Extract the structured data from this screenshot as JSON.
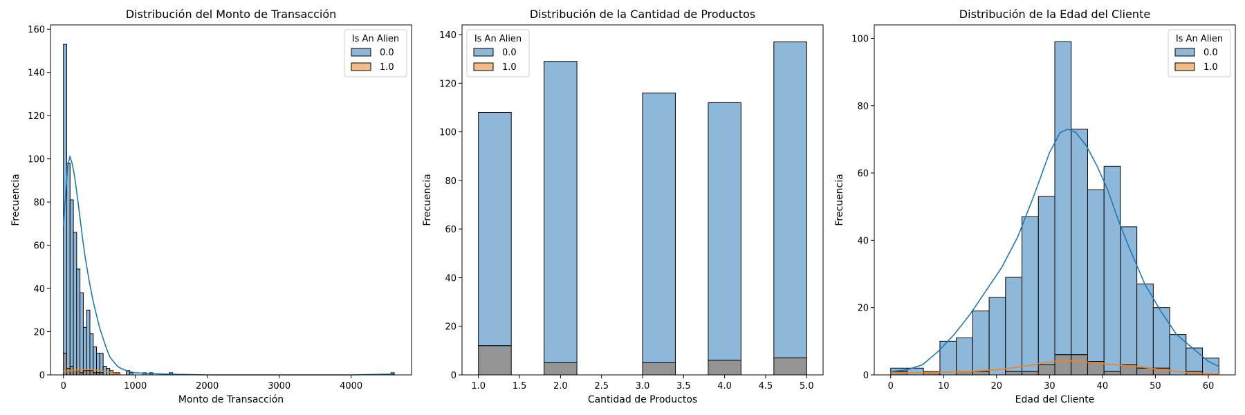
{
  "legend_title": "Is An Alien",
  "legend_labels": [
    "0.0",
    "1.0"
  ],
  "colors": {
    "series0_fill": "#8db8da",
    "series0_line": "#1f77b4",
    "series1_fill": "#f5bb86",
    "series1_line": "#ff7f0e",
    "overlap_fill": "#949494"
  },
  "chart_data": [
    {
      "type": "bar",
      "title": "Distribución del Monto de Transacción",
      "xlabel": "Monto de Transacción",
      "ylabel": "Frecuencia",
      "xlim": [
        -180,
        4840
      ],
      "ylim": [
        0,
        162
      ],
      "xticks": [
        0,
        1000,
        2000,
        3000,
        4000
      ],
      "yticks": [
        0,
        20,
        40,
        60,
        80,
        100,
        120,
        140,
        160
      ],
      "legend_position": "top-right",
      "bin_edges": [
        0,
        46,
        92,
        138,
        184,
        230,
        276,
        322,
        368,
        414,
        460,
        506,
        552,
        598,
        644,
        690,
        736,
        782,
        828,
        874,
        920,
        966,
        1012,
        1058,
        1104,
        1150,
        1196,
        1242,
        1288,
        1334,
        1380,
        1426,
        1472,
        1518,
        1564,
        4554,
        4600
      ],
      "series": [
        {
          "name": "0.0",
          "counts": [
            153,
            98,
            81,
            66,
            49,
            38,
            22,
            30,
            19,
            13,
            10,
            10,
            4,
            3,
            2,
            1,
            1,
            0,
            0,
            2,
            1,
            0,
            0,
            0,
            1,
            0,
            1,
            0,
            0,
            0,
            0,
            0,
            1,
            0,
            0,
            1
          ],
          "kde_x": [
            0,
            30,
            60,
            90,
            120,
            150,
            180,
            210,
            240,
            270,
            300,
            330,
            360,
            390,
            420,
            450,
            480,
            510,
            540,
            570,
            600,
            650,
            700,
            750,
            800,
            900,
            1000,
            1200,
            1500,
            2000,
            3000,
            4000,
            4600
          ],
          "kde_y": [
            69,
            83,
            97,
            101,
            98,
            93,
            86,
            78,
            70,
            62,
            55,
            49,
            43,
            38,
            33,
            29,
            25,
            21,
            18,
            15,
            12,
            8,
            6,
            4,
            3,
            1.6,
            1,
            0.6,
            0.3,
            0,
            0,
            0,
            0.4
          ]
        },
        {
          "name": "1.0",
          "counts": [
            10,
            3,
            4,
            2,
            2,
            1,
            2,
            2,
            2,
            1,
            1,
            1,
            0,
            0,
            0,
            0,
            0,
            0,
            0,
            0,
            0,
            0,
            0,
            0,
            0,
            0,
            0,
            0,
            0,
            0,
            0,
            0,
            0,
            0,
            0,
            0
          ],
          "kde_x": [
            0,
            100,
            200,
            300,
            400,
            500,
            600,
            700,
            800
          ],
          "kde_y": [
            1.5,
            2,
            2.2,
            2.4,
            2.4,
            2.1,
            1.4,
            0.7,
            0.2
          ]
        }
      ]
    },
    {
      "type": "bar",
      "title": "Distribución de la Cantidad de Productos",
      "xlabel": "Cantidad de Productos",
      "ylabel": "Frecuencia",
      "xlim": [
        0.8,
        5.2
      ],
      "ylim": [
        0,
        144
      ],
      "xticks": [
        1.0,
        1.5,
        2.0,
        2.5,
        3.0,
        3.5,
        4.0,
        4.5,
        5.0
      ],
      "xtick_labels": [
        "1.0",
        "1.5",
        "2.0",
        "2.5",
        "3.0",
        "3.5",
        "4.0",
        "4.5",
        "5.0"
      ],
      "yticks": [
        0,
        20,
        40,
        60,
        80,
        100,
        120,
        140
      ],
      "legend_position": "top-left",
      "bin_edges": [
        1.0,
        1.4,
        1.8,
        2.2,
        2.6,
        3.0,
        3.4,
        3.8,
        4.2,
        4.6,
        5.0
      ],
      "series": [
        {
          "name": "0.0",
          "counts": [
            108,
            0,
            129,
            0,
            0,
            116,
            0,
            112,
            0,
            137
          ]
        },
        {
          "name": "1.0",
          "counts": [
            12,
            0,
            5,
            0,
            0,
            5,
            0,
            6,
            0,
            7
          ]
        }
      ]
    },
    {
      "type": "bar",
      "title": "Distribución de la Edad del Cliente",
      "xlabel": "Edad del Cliente",
      "ylabel": "Frecuencia",
      "xlim": [
        -3.1,
        65.1
      ],
      "ylim": [
        0,
        104
      ],
      "xticks": [
        0,
        10,
        20,
        30,
        40,
        50,
        60
      ],
      "yticks": [
        0,
        20,
        40,
        60,
        80,
        100
      ],
      "legend_position": "top-right",
      "bin_edges": [
        0,
        3.1,
        6.2,
        9.3,
        12.4,
        15.5,
        18.6,
        21.7,
        24.8,
        27.9,
        31,
        34.1,
        37.2,
        40.3,
        43.4,
        46.5,
        49.6,
        52.7,
        55.8,
        58.9,
        62
      ],
      "series": [
        {
          "name": "0.0",
          "counts": [
            2,
            2,
            1,
            10,
            11,
            19,
            23,
            29,
            47,
            53,
            99,
            73,
            55,
            62,
            44,
            27,
            20,
            12,
            8,
            5
          ],
          "kde_x": [
            0,
            3,
            6,
            9,
            12,
            15,
            18,
            21,
            24,
            27,
            30,
            32,
            33.5,
            35,
            37,
            39,
            41,
            43,
            45,
            48,
            51,
            54,
            57,
            60,
            62
          ],
          "kde_y": [
            1,
            1.5,
            3,
            7,
            12,
            18,
            25,
            32,
            41,
            53,
            66,
            72,
            73,
            72,
            68,
            62,
            55,
            46,
            38,
            27,
            19,
            12,
            8,
            4,
            2.5
          ]
        },
        {
          "name": "1.0",
          "counts": [
            1,
            0,
            1,
            0,
            1,
            1,
            0,
            1,
            1,
            3,
            6,
            6,
            4,
            1,
            3,
            2,
            2,
            0,
            1,
            0
          ],
          "kde_x": [
            0,
            5,
            10,
            15,
            20,
            25,
            28,
            31,
            33,
            35,
            38,
            41,
            44,
            47,
            50,
            53,
            56,
            59,
            62
          ],
          "kde_y": [
            0.5,
            0.6,
            0.8,
            1,
            1.5,
            2.5,
            3.3,
            4,
            4.2,
            4.1,
            3.7,
            3.2,
            2.8,
            2.4,
            1.8,
            1.2,
            0.7,
            0.4,
            0.2
          ]
        }
      ]
    }
  ]
}
